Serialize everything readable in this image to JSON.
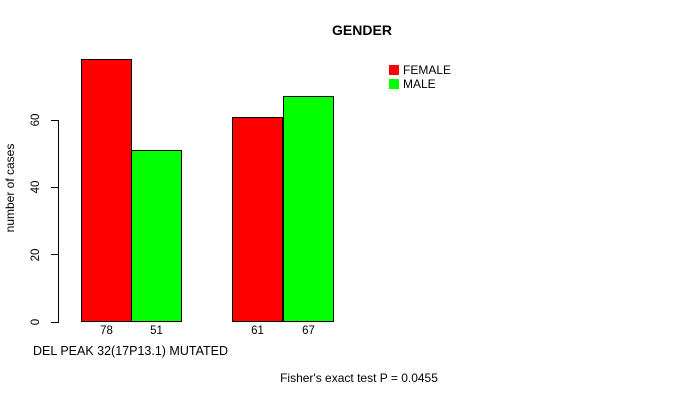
{
  "chart_data": {
    "type": "bar",
    "title": "GENDER",
    "ylabel": "number of cases",
    "xlabel": "DEL PEAK 32(17P13.1) MUTATED",
    "yticks": [
      0,
      20,
      40,
      60
    ],
    "ylim": [
      0,
      80
    ],
    "grid": false,
    "legend_position": "top-right",
    "series": [
      {
        "name": "FEMALE",
        "color": "#ff0000",
        "values": [
          78,
          61
        ]
      },
      {
        "name": "MALE",
        "color": "#00ff00",
        "values": [
          51,
          67
        ]
      }
    ],
    "bar_value_labels": [
      "78",
      "51",
      "61",
      "67"
    ],
    "annotation": "Fisher's exact test P = 0.0455"
  }
}
